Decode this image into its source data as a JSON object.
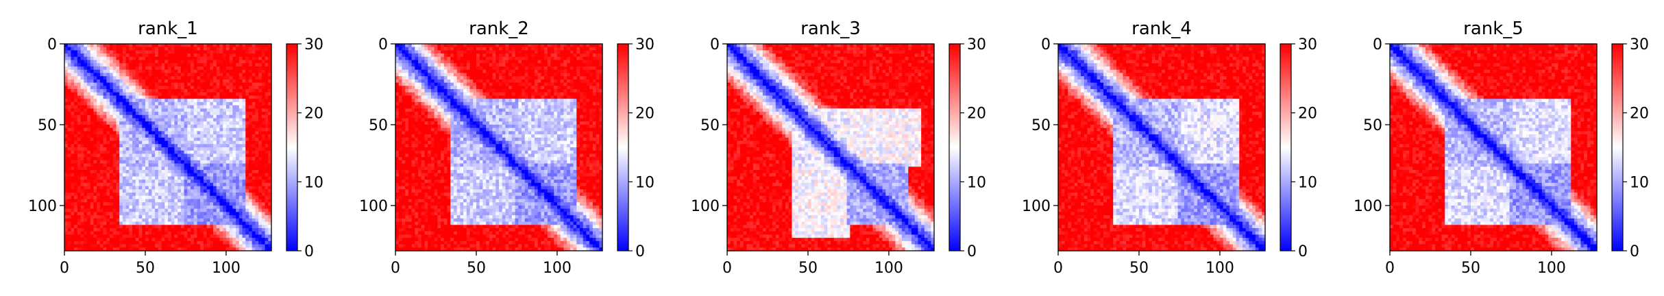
{
  "figure": {
    "colorbar_ticks": [
      "0",
      "10",
      "20",
      "30"
    ],
    "colorbar_range": [
      0,
      30
    ],
    "colormap": {
      "low": "#0000ff",
      "mid": "#ffffff",
      "high": "#ff0000"
    }
  },
  "chart_data": [
    {
      "type": "heatmap",
      "title": "rank_1",
      "xlabel": "",
      "ylabel": "",
      "xlim": [
        0,
        128
      ],
      "ylim": [
        128,
        0
      ],
      "xticks": [
        "0",
        "50",
        "100"
      ],
      "yticks": [
        "0",
        "50",
        "100"
      ],
      "matrix_size": 128,
      "value_range": [
        0,
        30
      ],
      "diagonal_value": 0,
      "background_value": 30,
      "domains": [
        {
          "start": 35,
          "end": 112,
          "value": 12
        }
      ],
      "contact_blocks": [
        {
          "x": [
            35,
            75
          ],
          "y": [
            35,
            75
          ],
          "value": 11
        },
        {
          "x": [
            75,
            112
          ],
          "y": [
            75,
            112
          ],
          "value": 9
        },
        {
          "x": [
            35,
            75
          ],
          "y": [
            75,
            112
          ],
          "value": 12
        }
      ]
    },
    {
      "type": "heatmap",
      "title": "rank_2",
      "xlabel": "",
      "ylabel": "",
      "xlim": [
        0,
        128
      ],
      "ylim": [
        128,
        0
      ],
      "xticks": [
        "0",
        "50",
        "100"
      ],
      "yticks": [
        "0",
        "50",
        "100"
      ],
      "matrix_size": 128,
      "value_range": [
        0,
        30
      ],
      "diagonal_value": 0,
      "background_value": 30,
      "domains": [
        {
          "start": 35,
          "end": 112,
          "value": 12
        }
      ],
      "contact_blocks": [
        {
          "x": [
            35,
            75
          ],
          "y": [
            35,
            75
          ],
          "value": 11
        },
        {
          "x": [
            75,
            112
          ],
          "y": [
            75,
            112
          ],
          "value": 9
        },
        {
          "x": [
            35,
            75
          ],
          "y": [
            75,
            112
          ],
          "value": 12
        }
      ]
    },
    {
      "type": "heatmap",
      "title": "rank_3",
      "xlabel": "",
      "ylabel": "",
      "xlim": [
        0,
        128
      ],
      "ylim": [
        128,
        0
      ],
      "xticks": [
        "0",
        "50",
        "100"
      ],
      "yticks": [
        "0",
        "50",
        "100"
      ],
      "matrix_size": 128,
      "value_range": [
        0,
        30
      ],
      "diagonal_value": 0,
      "background_value": 30,
      "domains": [
        {
          "start": 38,
          "end": 115,
          "value": 15
        }
      ],
      "contact_blocks": [
        {
          "x": [
            40,
            75
          ],
          "y": [
            40,
            75
          ],
          "value": 14
        },
        {
          "x": [
            75,
            112
          ],
          "y": [
            75,
            112
          ],
          "value": 10
        },
        {
          "x": [
            40,
            75
          ],
          "y": [
            75,
            120
          ],
          "value": 15
        }
      ]
    },
    {
      "type": "heatmap",
      "title": "rank_4",
      "xlabel": "",
      "ylabel": "",
      "xlim": [
        0,
        128
      ],
      "ylim": [
        128,
        0
      ],
      "xticks": [
        "0",
        "50",
        "100"
      ],
      "yticks": [
        "0",
        "50",
        "100"
      ],
      "matrix_size": 128,
      "value_range": [
        0,
        30
      ],
      "diagonal_value": 0,
      "background_value": 30,
      "domains": [
        {
          "start": 35,
          "end": 112,
          "value": 13
        }
      ],
      "contact_blocks": [
        {
          "x": [
            35,
            75
          ],
          "y": [
            35,
            75
          ],
          "value": 11
        },
        {
          "x": [
            75,
            112
          ],
          "y": [
            75,
            112
          ],
          "value": 9
        },
        {
          "x": [
            35,
            75
          ],
          "y": [
            75,
            112
          ],
          "value": 13
        }
      ]
    },
    {
      "type": "heatmap",
      "title": "rank_5",
      "xlabel": "",
      "ylabel": "",
      "xlim": [
        0,
        128
      ],
      "ylim": [
        128,
        0
      ],
      "xticks": [
        "0",
        "50",
        "100"
      ],
      "yticks": [
        "0",
        "50",
        "100"
      ],
      "matrix_size": 128,
      "value_range": [
        0,
        30
      ],
      "diagonal_value": 0,
      "background_value": 30,
      "domains": [
        {
          "start": 35,
          "end": 112,
          "value": 13
        }
      ],
      "contact_blocks": [
        {
          "x": [
            35,
            75
          ],
          "y": [
            35,
            75
          ],
          "value": 11
        },
        {
          "x": [
            75,
            112
          ],
          "y": [
            75,
            112
          ],
          "value": 9
        },
        {
          "x": [
            35,
            75
          ],
          "y": [
            75,
            112
          ],
          "value": 13
        }
      ]
    }
  ]
}
